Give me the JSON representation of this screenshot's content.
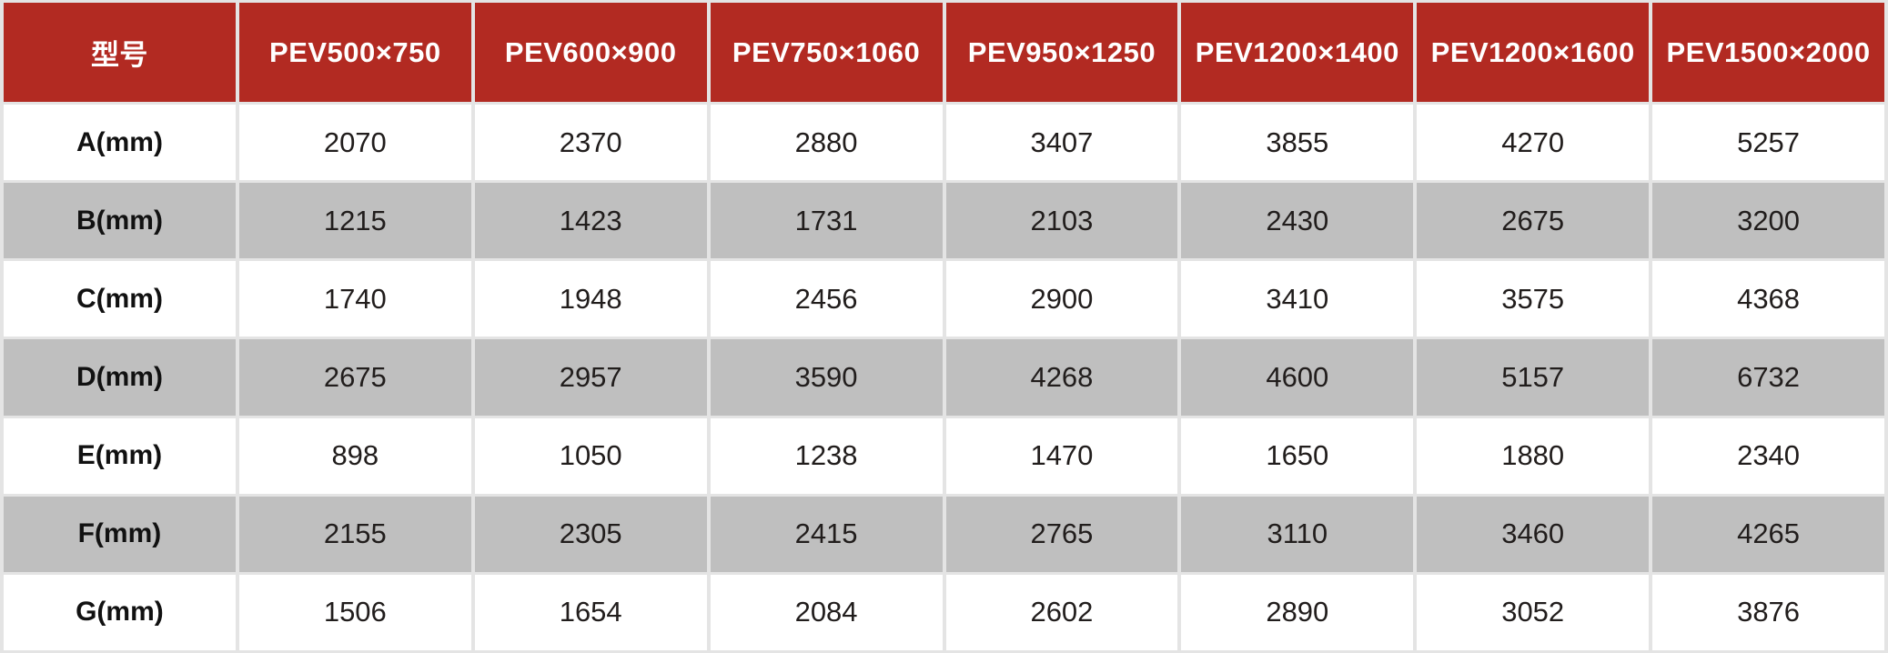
{
  "chart_data": {
    "type": "table",
    "title": "",
    "columns": [
      "型号",
      "PEV500×750",
      "PEV600×900",
      "PEV750×1060",
      "PEV950×1250",
      "PEV1200×1400",
      "PEV1200×1600",
      "PEV1500×2000"
    ],
    "rows": [
      {
        "label": "A(mm)",
        "values": [
          2070,
          2370,
          2880,
          3407,
          3855,
          4270,
          5257
        ]
      },
      {
        "label": "B(mm)",
        "values": [
          1215,
          1423,
          1731,
          2103,
          2430,
          2675,
          3200
        ]
      },
      {
        "label": "C(mm)",
        "values": [
          1740,
          1948,
          2456,
          2900,
          3410,
          3575,
          4368
        ]
      },
      {
        "label": "D(mm)",
        "values": [
          2675,
          2957,
          3590,
          4268,
          4600,
          5157,
          6732
        ]
      },
      {
        "label": "E(mm)",
        "values": [
          898,
          1050,
          1238,
          1470,
          1650,
          1880,
          2340
        ]
      },
      {
        "label": "F(mm)",
        "values": [
          2155,
          2305,
          2415,
          2765,
          3110,
          3460,
          4265
        ]
      },
      {
        "label": "G(mm)",
        "values": [
          1506,
          1654,
          2084,
          2602,
          2890,
          3052,
          3876
        ]
      }
    ]
  },
  "colors": {
    "header_bg": "#b22a22",
    "header_text": "#ffffff",
    "row_white": "#ffffff",
    "row_gray": "#bfbfbf",
    "gap": "#e4e4e4",
    "cell_text": "#211d1c"
  }
}
